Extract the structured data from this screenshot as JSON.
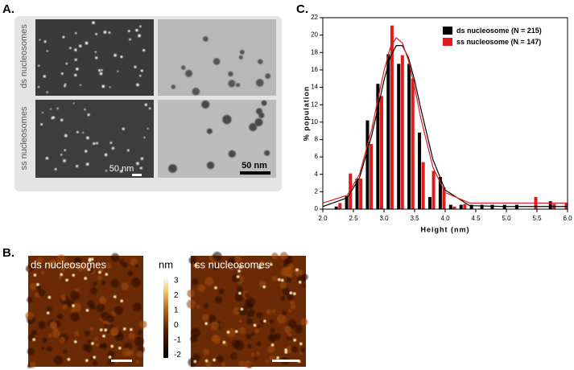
{
  "panels": {
    "a": {
      "label": "A.",
      "rows": [
        "ds nucleosomes",
        "ss nucleosomes"
      ],
      "scale_left": "50 nm",
      "scale_right": "50 nm"
    },
    "b": {
      "label": "B.",
      "left_title": "ds nucleosomes",
      "right_title": "ss nucleosomes",
      "colorbar_unit": "nm",
      "colorbar_ticks": [
        3,
        2,
        1,
        0,
        -1,
        -2
      ]
    },
    "c": {
      "label": "C."
    }
  },
  "chart_data": {
    "type": "bar",
    "xlabel": "Height (nm)",
    "ylabel": "% population",
    "xlim": [
      2,
      6
    ],
    "ylim": [
      0,
      22
    ],
    "xticks": [
      {
        "value": 2,
        "label": "2.0"
      },
      {
        "value": 2.5,
        "label": "2.5"
      },
      {
        "value": 3,
        "label": "3.0"
      },
      {
        "value": 3.5,
        "label": "3.5"
      },
      {
        "value": 4,
        "label": "4.0"
      },
      {
        "value": 4.5,
        "label": "4.5"
      },
      {
        "value": 5,
        "label": "5.0"
      },
      {
        "value": 5.5,
        "label": "5.5"
      },
      {
        "value": 6,
        "label": "6.0"
      }
    ],
    "yticks": [
      0,
      2,
      4,
      6,
      8,
      10,
      12,
      14,
      16,
      18,
      20,
      22
    ],
    "x": [
      2.25,
      2.42,
      2.59,
      2.76,
      2.93,
      3.1,
      3.27,
      3.44,
      3.61,
      3.78,
      3.95,
      4.12,
      4.29,
      4.46,
      4.63,
      4.8,
      5.0,
      5.2,
      5.45,
      5.75,
      5.95
    ],
    "fit_x": [
      2.0,
      2.4,
      2.6,
      2.8,
      2.9,
      3.0,
      3.1,
      3.2,
      3.3,
      3.4,
      3.5,
      3.6,
      3.8,
      4.0,
      4.4,
      5.0,
      6.0
    ],
    "series": [
      {
        "name": "ds nucleosome (N = 215)",
        "color": "#000000",
        "values": [
          0.3,
          1.5,
          3.5,
          10.2,
          14.4,
          17.8,
          16.7,
          16.7,
          8.8,
          1.4,
          3.7,
          0.5,
          0.5,
          0.5,
          0.5,
          0.5,
          0.5,
          0.5,
          0,
          0.9,
          0
        ],
        "fit": [
          0.3,
          1.3,
          3.6,
          8.5,
          11.6,
          14.8,
          17.4,
          18.8,
          18.8,
          17.4,
          14.8,
          11.6,
          5.7,
          2.2,
          0.4,
          0.3,
          0.3
        ]
      },
      {
        "name": "ss nucleosome (N = 147)",
        "color": "#e31a1c",
        "values": [
          0.7,
          4.1,
          3.5,
          7.5,
          13.0,
          21.1,
          17.7,
          15.0,
          5.4,
          4.4,
          2.5,
          0.3,
          0.6,
          0,
          0,
          0,
          0,
          0,
          1.4,
          0.6,
          0.7
        ],
        "fit": [
          0.7,
          1.6,
          4.0,
          9.2,
          12.6,
          15.9,
          18.5,
          19.7,
          19.1,
          17.1,
          14.0,
          10.5,
          4.8,
          1.9,
          0.7,
          0.7,
          0.7
        ]
      }
    ]
  }
}
